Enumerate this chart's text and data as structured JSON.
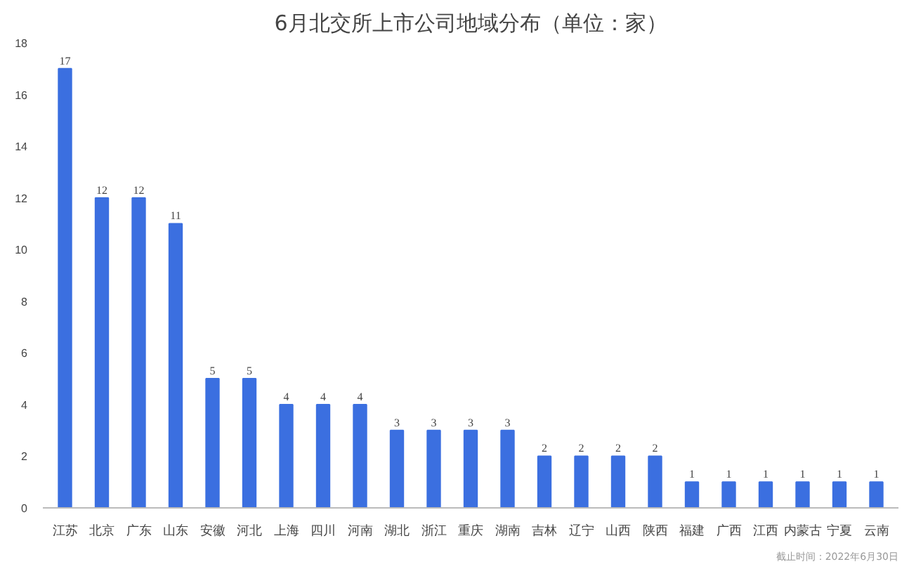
{
  "chart_data": {
    "type": "bar",
    "title": "6月北交所上市公司地域分布（单位：家）",
    "categories": [
      "江苏",
      "北京",
      "广东",
      "山东",
      "安徽",
      "河北",
      "上海",
      "四川",
      "河南",
      "湖北",
      "浙江",
      "重庆",
      "湖南",
      "吉林",
      "辽宁",
      "山西",
      "陕西",
      "福建",
      "广西",
      "江西",
      "内蒙古",
      "宁夏",
      "云南"
    ],
    "values": [
      17,
      12,
      12,
      11,
      5,
      5,
      4,
      4,
      4,
      3,
      3,
      3,
      3,
      2,
      2,
      2,
      2,
      1,
      1,
      1,
      1,
      1,
      1
    ],
    "color": "#3b6fe0",
    "data_labels": true,
    "grid": false,
    "ylim": [
      0,
      18
    ],
    "yticks": [
      0,
      2,
      4,
      6,
      8,
      10,
      12,
      14,
      16,
      18
    ],
    "annotations": [
      "截止时间：2022年6月30日"
    ]
  }
}
